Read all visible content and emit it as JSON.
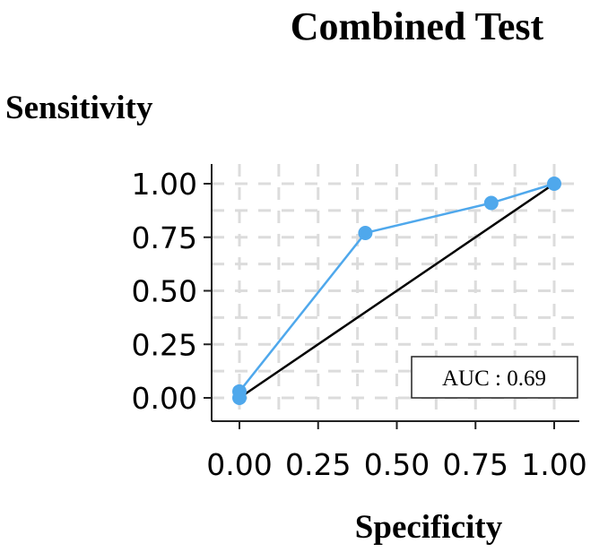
{
  "chart_data": {
    "type": "line",
    "title": "Combined Test",
    "xlabel": "Specificity",
    "ylabel": "Sensitivity",
    "xlim": [
      0,
      1
    ],
    "ylim": [
      0,
      1
    ],
    "x_ticks": [
      "0.00",
      "0.25",
      "0.50",
      "0.75",
      "1.00"
    ],
    "y_ticks": [
      "0.00",
      "0.25",
      "0.50",
      "0.75",
      "1.00"
    ],
    "x_tick_values": [
      0,
      0.25,
      0.5,
      0.75,
      1
    ],
    "y_tick_values": [
      0,
      0.25,
      0.5,
      0.75,
      1
    ],
    "grid": true,
    "series": [
      {
        "x": [
          0.0,
          0.0,
          0.4,
          0.8,
          1.0
        ],
        "y": [
          0.0,
          0.03,
          0.77,
          0.91,
          1.0
        ],
        "color": "#4fa8ec"
      }
    ],
    "reference_line": {
      "x": [
        0,
        1
      ],
      "y": [
        0,
        1
      ],
      "color": "#000000"
    },
    "annotation": {
      "label": "AUC : 0.69"
    }
  }
}
